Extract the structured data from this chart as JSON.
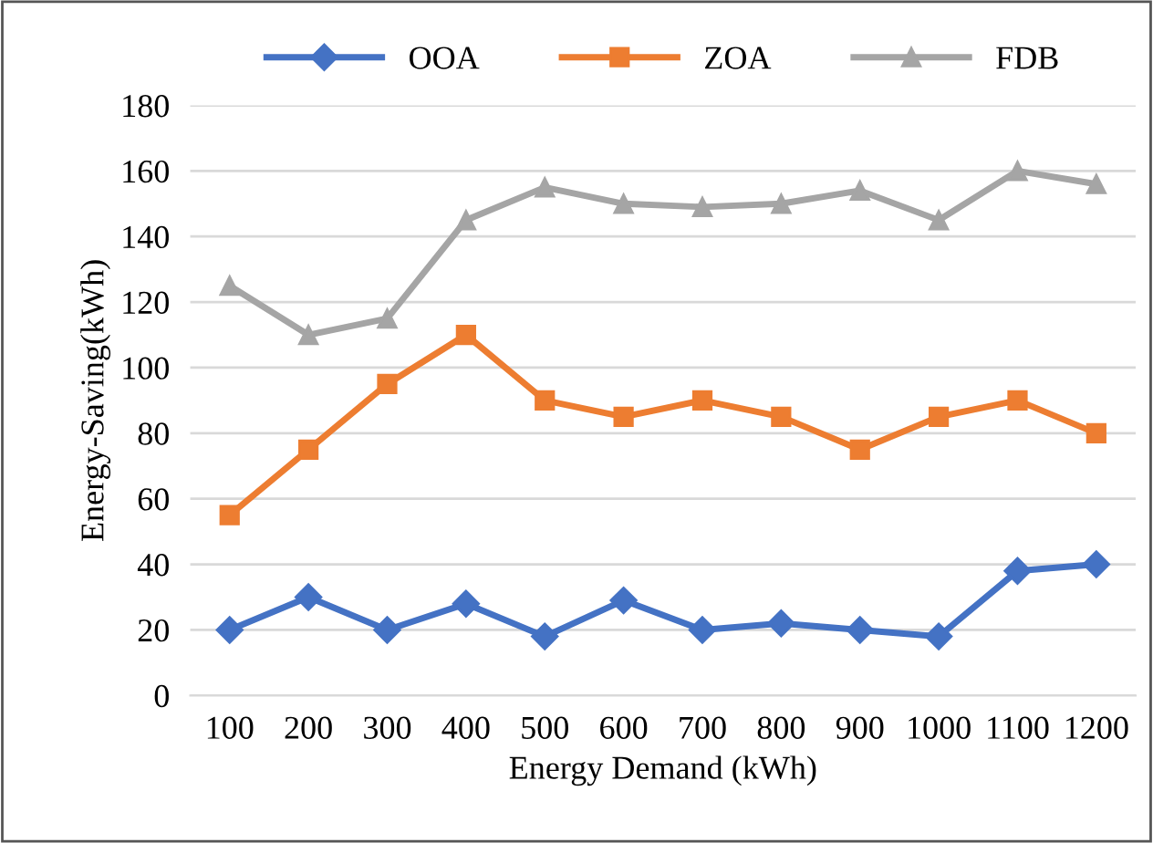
{
  "chart_data": {
    "type": "line",
    "xlabel": "Energy Demand (kWh)",
    "ylabel": "Energy-Saving(kWh)",
    "categories": [
      "100",
      "200",
      "300",
      "400",
      "500",
      "600",
      "700",
      "800",
      "900",
      "1000",
      "1100",
      "1200"
    ],
    "series": [
      {
        "name": "OOA",
        "color": "#4472c4",
        "marker": "diamond",
        "values": [
          20,
          30,
          20,
          28,
          18,
          29,
          20,
          22,
          20,
          18,
          38,
          40
        ]
      },
      {
        "name": "ZOA",
        "color": "#ed7d31",
        "marker": "square",
        "values": [
          55,
          75,
          95,
          110,
          90,
          85,
          90,
          85,
          75,
          85,
          90,
          80
        ]
      },
      {
        "name": "FDB",
        "color": "#a5a5a5",
        "marker": "triangle",
        "values": [
          125,
          110,
          115,
          145,
          155,
          150,
          149,
          150,
          154,
          145,
          160,
          156
        ]
      }
    ],
    "ylim": [
      0,
      180
    ],
    "yticks": [
      0,
      20,
      40,
      60,
      80,
      100,
      120,
      140,
      160,
      180
    ],
    "grid": "y",
    "legend": "top"
  }
}
